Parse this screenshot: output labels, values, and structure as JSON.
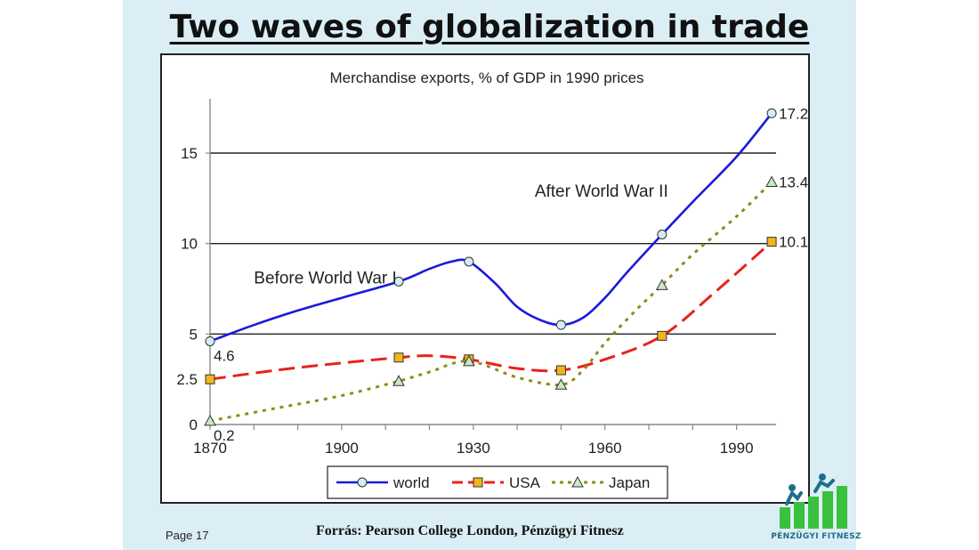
{
  "slide": {
    "title": "Two waves of globalization in trade",
    "page": "Page 17",
    "source": "Forrás: Pearson College London, Pénzügyi Fitnesz",
    "logo_text": "PÉNZÜGYI FITNESZ"
  },
  "chart_data": {
    "type": "line",
    "title": "Merchandise exports, % of GDP in 1990 prices",
    "xlabel": "",
    "ylabel": "",
    "xlim": [
      1870,
      1999
    ],
    "ylim": [
      0,
      18
    ],
    "x_ticks": [
      "1870",
      "1900",
      "1930",
      "1960",
      "1990"
    ],
    "y_ticks": [
      "0",
      "2.5",
      "5",
      "10",
      "15"
    ],
    "gridlines": [
      5,
      10,
      15
    ],
    "legend_position": "bottom",
    "colors": {
      "world": "#1a1adb",
      "USA": "#e8221b",
      "Japan": "#8b8e1a"
    },
    "series": [
      {
        "name": "world",
        "marker": "circle",
        "style": "solid",
        "points": [
          [
            1870,
            4.6
          ],
          [
            1913,
            7.9
          ],
          [
            1929,
            9.0
          ],
          [
            1950,
            5.5
          ],
          [
            1973,
            10.5
          ],
          [
            1998,
            17.2
          ]
        ],
        "curve": [
          [
            1870,
            4.6
          ],
          [
            1880,
            5.5
          ],
          [
            1890,
            6.3
          ],
          [
            1900,
            7.0
          ],
          [
            1913,
            7.9
          ],
          [
            1920,
            8.6
          ],
          [
            1925,
            9.0
          ],
          [
            1929,
            9.0
          ],
          [
            1935,
            7.8
          ],
          [
            1940,
            6.5
          ],
          [
            1945,
            5.8
          ],
          [
            1950,
            5.5
          ],
          [
            1955,
            5.9
          ],
          [
            1960,
            7.0
          ],
          [
            1965,
            8.4
          ],
          [
            1973,
            10.5
          ],
          [
            1980,
            12.3
          ],
          [
            1990,
            14.8
          ],
          [
            1998,
            17.2
          ]
        ]
      },
      {
        "name": "USA",
        "marker": "square",
        "style": "dashed",
        "points": [
          [
            1870,
            2.5
          ],
          [
            1913,
            3.7
          ],
          [
            1929,
            3.6
          ],
          [
            1950,
            3.0
          ],
          [
            1973,
            4.9
          ],
          [
            1998,
            10.1
          ]
        ],
        "curve": [
          [
            1870,
            2.5
          ],
          [
            1885,
            3.0
          ],
          [
            1900,
            3.4
          ],
          [
            1913,
            3.7
          ],
          [
            1920,
            3.8
          ],
          [
            1929,
            3.6
          ],
          [
            1940,
            3.1
          ],
          [
            1950,
            3.0
          ],
          [
            1960,
            3.6
          ],
          [
            1973,
            4.9
          ],
          [
            1985,
            7.3
          ],
          [
            1998,
            10.1
          ]
        ]
      },
      {
        "name": "Japan",
        "marker": "triangle",
        "style": "dotted",
        "points": [
          [
            1870,
            0.2
          ],
          [
            1913,
            2.4
          ],
          [
            1929,
            3.5
          ],
          [
            1950,
            2.2
          ],
          [
            1973,
            7.7
          ],
          [
            1998,
            13.4
          ]
        ],
        "curve": [
          [
            1870,
            0.2
          ],
          [
            1885,
            0.9
          ],
          [
            1900,
            1.6
          ],
          [
            1913,
            2.4
          ],
          [
            1920,
            2.9
          ],
          [
            1929,
            3.5
          ],
          [
            1940,
            2.6
          ],
          [
            1950,
            2.2
          ],
          [
            1955,
            3.0
          ],
          [
            1960,
            4.5
          ],
          [
            1967,
            6.3
          ],
          [
            1973,
            7.7
          ],
          [
            1980,
            9.4
          ],
          [
            1990,
            11.5
          ],
          [
            1998,
            13.4
          ]
        ]
      }
    ],
    "data_labels": [
      {
        "text": "4.6",
        "x": 1870,
        "y": 4.6
      },
      {
        "text": "0.2",
        "x": 1870,
        "y": 0.2
      },
      {
        "text": "17.2",
        "x": 1998,
        "y": 17.2
      },
      {
        "text": "13.4",
        "x": 1998,
        "y": 13.4
      },
      {
        "text": "10.1",
        "x": 1998,
        "y": 10.1
      }
    ],
    "annotations": [
      {
        "text": "Before World War I",
        "x": 1880,
        "y": 7.8
      },
      {
        "text": "After World War II",
        "x": 1944,
        "y": 12.6
      }
    ]
  }
}
